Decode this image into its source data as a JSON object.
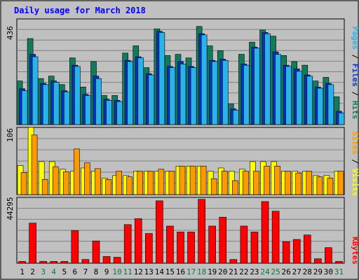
{
  "chart_data": [
    {
      "type": "bar",
      "title": "Daily usage for March 2018",
      "panel": "requests",
      "ylim": [
        0,
        436
      ],
      "max_label": "436",
      "categories": [
        "1",
        "2",
        "3",
        "4",
        "5",
        "6",
        "7",
        "8",
        "9",
        "10",
        "11",
        "12",
        "13",
        "14",
        "15",
        "16",
        "17",
        "18",
        "19",
        "20",
        "21",
        "22",
        "23",
        "24",
        "25",
        "26",
        "27",
        "28",
        "29",
        "30",
        "31"
      ],
      "series": [
        {
          "name": "Hits",
          "color": "#137a5e",
          "values": [
            180,
            355,
            190,
            200,
            165,
            275,
            155,
            260,
            120,
            120,
            295,
            325,
            235,
            395,
            285,
            290,
            275,
            405,
            325,
            305,
            85,
            290,
            340,
            390,
            365,
            285,
            260,
            245,
            180,
            195,
            115
          ]
        },
        {
          "name": "Files",
          "color": "#0033cc",
          "values": [
            148,
            290,
            170,
            180,
            140,
            245,
            125,
            200,
            105,
            100,
            265,
            280,
            210,
            385,
            240,
            260,
            240,
            375,
            265,
            270,
            65,
            250,
            320,
            380,
            300,
            245,
            230,
            205,
            155,
            170,
            55
          ]
        },
        {
          "name": "Pages",
          "color": "#2ab2ea",
          "values": [
            140,
            280,
            165,
            175,
            135,
            240,
            120,
            190,
            100,
            95,
            260,
            275,
            205,
            380,
            235,
            250,
            235,
            370,
            260,
            265,
            60,
            245,
            315,
            375,
            290,
            240,
            220,
            200,
            150,
            165,
            48
          ]
        }
      ]
    },
    {
      "type": "bar",
      "panel": "visitors",
      "ylim": [
        0,
        106
      ],
      "max_label": "106",
      "categories": [
        "1",
        "2",
        "3",
        "4",
        "5",
        "6",
        "7",
        "8",
        "9",
        "10",
        "11",
        "12",
        "13",
        "14",
        "15",
        "16",
        "17",
        "18",
        "19",
        "20",
        "21",
        "22",
        "23",
        "24",
        "25",
        "26",
        "27",
        "28",
        "29",
        "30",
        "31"
      ],
      "series": [
        {
          "name": "Visits",
          "color": "#ffff00",
          "values": [
            46,
            106,
            52,
            52,
            40,
            37,
            42,
            37,
            26,
            30,
            30,
            37,
            37,
            37,
            37,
            45,
            45,
            45,
            37,
            42,
            37,
            40,
            52,
            52,
            52,
            37,
            37,
            37,
            30,
            30,
            37
          ]
        },
        {
          "name": "Sites",
          "color": "#ff9900",
          "values": [
            35,
            94,
            24,
            44,
            36,
            72,
            50,
            41,
            24,
            37,
            28,
            37,
            37,
            40,
            37,
            45,
            45,
            45,
            25,
            37,
            22,
            37,
            37,
            45,
            45,
            37,
            34,
            37,
            28,
            26,
            37
          ]
        }
      ]
    },
    {
      "type": "bar",
      "panel": "kbytes",
      "ylim": [
        0,
        44295
      ],
      "max_label": "44295",
      "categories": [
        "1",
        "2",
        "3",
        "4",
        "5",
        "6",
        "7",
        "8",
        "9",
        "10",
        "11",
        "12",
        "13",
        "14",
        "15",
        "16",
        "17",
        "18",
        "19",
        "20",
        "21",
        "22",
        "23",
        "24",
        "25",
        "26",
        "27",
        "28",
        "29",
        "30",
        "31"
      ],
      "series": [
        {
          "name": "KBytes",
          "color": "#ff0000",
          "values": [
            1200,
            27000,
            1200,
            1200,
            1200,
            22000,
            2500,
            15000,
            4500,
            4000,
            26000,
            30000,
            20000,
            42000,
            25000,
            21000,
            21000,
            43000,
            25000,
            31000,
            2500,
            25000,
            21000,
            41500,
            35000,
            14500,
            16000,
            19000,
            3000,
            10500,
            1200
          ]
        }
      ]
    }
  ],
  "x_labels": [
    {
      "text": "1",
      "weekend": false
    },
    {
      "text": "2",
      "weekend": false
    },
    {
      "text": "3",
      "weekend": true
    },
    {
      "text": "4",
      "weekend": true
    },
    {
      "text": "5",
      "weekend": false
    },
    {
      "text": "6",
      "weekend": false
    },
    {
      "text": "7",
      "weekend": false
    },
    {
      "text": "8",
      "weekend": false
    },
    {
      "text": "9",
      "weekend": false
    },
    {
      "text": "10",
      "weekend": true
    },
    {
      "text": "11",
      "weekend": true
    },
    {
      "text": "12",
      "weekend": false
    },
    {
      "text": "13",
      "weekend": false
    },
    {
      "text": "14",
      "weekend": false
    },
    {
      "text": "15",
      "weekend": false
    },
    {
      "text": "16",
      "weekend": false
    },
    {
      "text": "17",
      "weekend": true
    },
    {
      "text": "18",
      "weekend": true
    },
    {
      "text": "19",
      "weekend": false
    },
    {
      "text": "20",
      "weekend": false
    },
    {
      "text": "21",
      "weekend": false
    },
    {
      "text": "22",
      "weekend": false
    },
    {
      "text": "23",
      "weekend": false
    },
    {
      "text": "24",
      "weekend": true
    },
    {
      "text": "25",
      "weekend": true
    },
    {
      "text": "26",
      "weekend": false
    },
    {
      "text": "27",
      "weekend": false
    },
    {
      "text": "28",
      "weekend": false
    },
    {
      "text": "29",
      "weekend": false
    },
    {
      "text": "30",
      "weekend": false
    },
    {
      "text": "31",
      "weekend": true
    }
  ],
  "right_labels": {
    "top": [
      {
        "text": "Pages",
        "color": "#2ab2ea"
      },
      {
        "text": " / ",
        "color": "#000000"
      },
      {
        "text": "Files",
        "color": "#0033cc"
      },
      {
        "text": " / ",
        "color": "#000000"
      },
      {
        "text": "Hits",
        "color": "#137a5e"
      }
    ],
    "middle": [
      {
        "text": "Sites",
        "color": "#ff9900"
      },
      {
        "text": " / ",
        "color": "#000000"
      },
      {
        "text": "Visits",
        "color": "#ffff00"
      }
    ],
    "bottom": [
      {
        "text": "KBytes",
        "color": "#ff0000"
      }
    ]
  },
  "colors": {
    "background": "#c0c0c0",
    "plot": "#c0c0c0",
    "grid": "#808080",
    "title": "#0000ff",
    "weekday_label": "#000000",
    "weekend_label": "#007f3f"
  }
}
